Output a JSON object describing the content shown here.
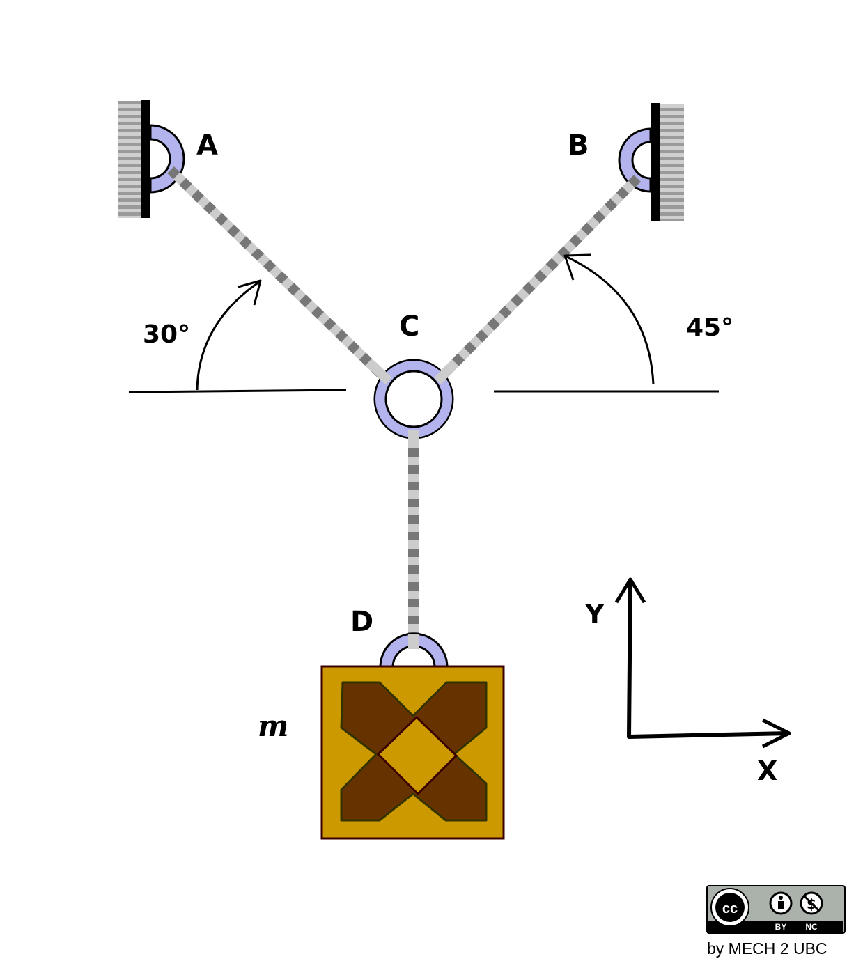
{
  "diagram": {
    "points": {
      "a": "A",
      "b": "B",
      "c": "C",
      "d": "D"
    },
    "angles": {
      "left": "30°",
      "right": "45°"
    },
    "mass_label": "m",
    "axes": {
      "x": "X",
      "y": "Y"
    },
    "colors": {
      "ring": "#b3b3ee",
      "crate_light": "#cc9900",
      "crate_dark": "#663300",
      "rope_light": "#cccccc",
      "rope_dark": "#777777"
    }
  },
  "license": {
    "cc": "cc",
    "by": "BY",
    "nc": "NC",
    "credit": "by MECH 2 UBC"
  }
}
